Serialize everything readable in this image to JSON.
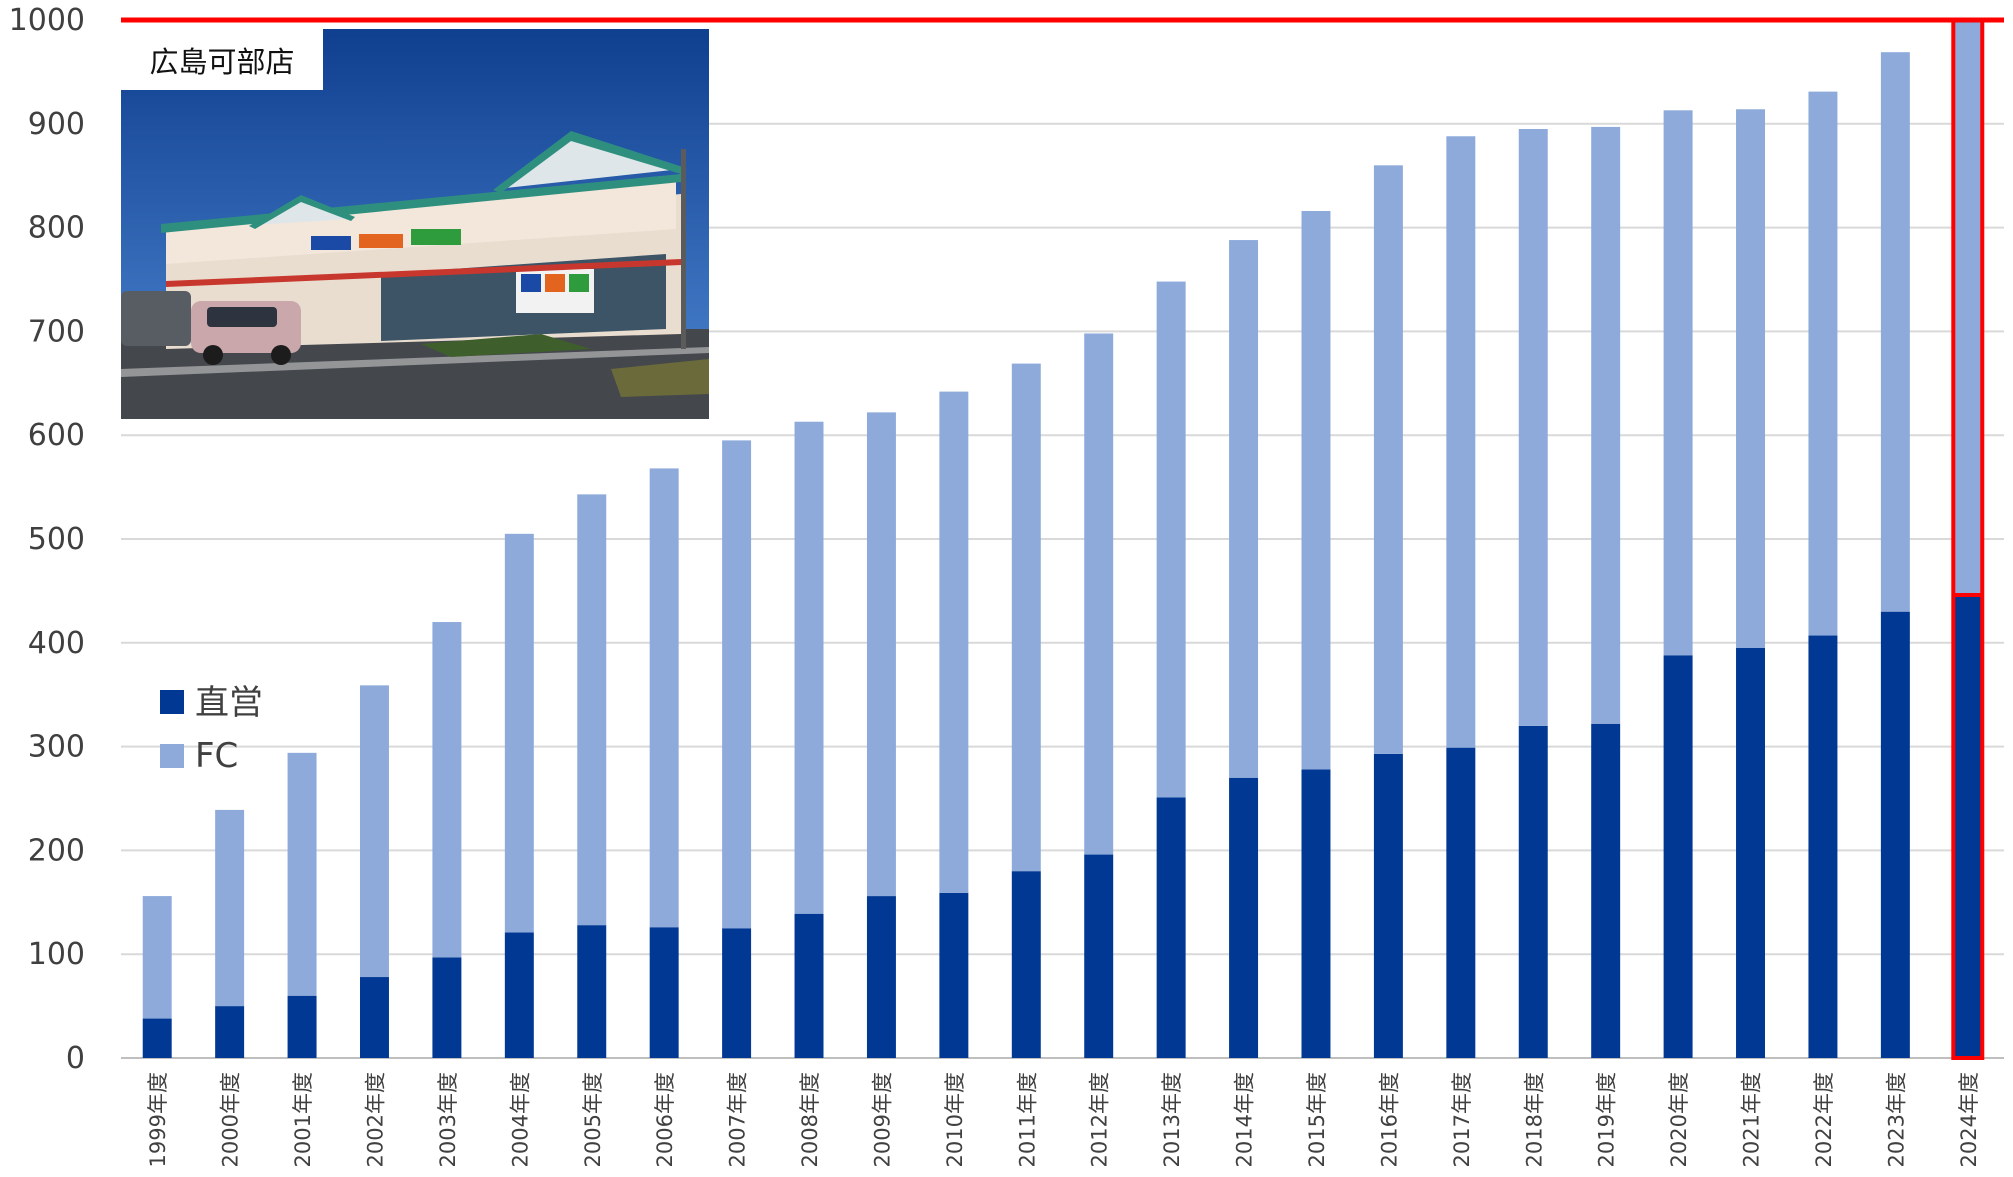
{
  "photo": {
    "caption": "広島可部店"
  },
  "colors": {
    "direct": "#003893",
    "fc": "#8eaadb",
    "highlight": "#ff0000",
    "grid": "#d9d9d9",
    "text": "#404040"
  },
  "chart_data": {
    "type": "bar",
    "stacked": true,
    "title": "",
    "xlabel": "",
    "ylabel": "",
    "ylim": [
      0,
      1000
    ],
    "yticks": [
      0,
      100,
      200,
      300,
      400,
      500,
      600,
      700,
      800,
      900,
      1000
    ],
    "grid": true,
    "legend_position": "left-middle",
    "highlighted_category": "2024年度",
    "reference_line": 1000,
    "categories": [
      "1999年度",
      "2000年度",
      "2001年度",
      "2002年度",
      "2003年度",
      "2004年度",
      "2005年度",
      "2006年度",
      "2007年度",
      "2008年度",
      "2009年度",
      "2010年度",
      "2011年度",
      "2012年度",
      "2013年度",
      "2014年度",
      "2015年度",
      "2016年度",
      "2017年度",
      "2018年度",
      "2019年度",
      "2020年度",
      "2021年度",
      "2022年度",
      "2023年度",
      "2024年度"
    ],
    "series": [
      {
        "name": "直営",
        "color": "#003893",
        "values": [
          38,
          50,
          60,
          78,
          97,
          121,
          128,
          126,
          125,
          139,
          156,
          159,
          180,
          196,
          251,
          270,
          278,
          293,
          299,
          320,
          322,
          388,
          395,
          407,
          430,
          446
        ]
      },
      {
        "name": "FC",
        "color": "#8eaadb",
        "values": [
          118,
          189,
          234,
          281,
          323,
          384,
          415,
          442,
          470,
          474,
          466,
          483,
          489,
          502,
          497,
          518,
          538,
          567,
          589,
          575,
          575,
          525,
          519,
          524,
          539,
          554
        ]
      }
    ]
  }
}
